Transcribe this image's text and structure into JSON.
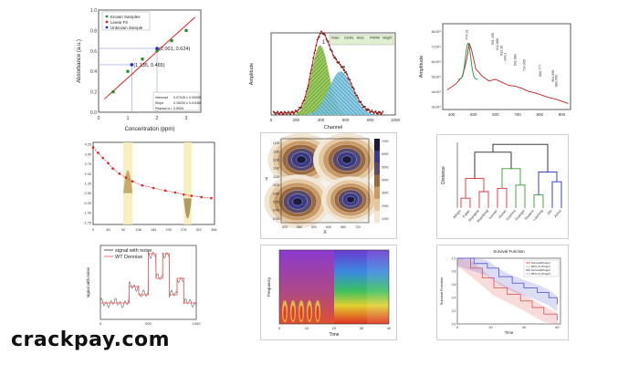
{
  "watermark": "crackpay.com",
  "chart_data": [
    {
      "type": "scatter",
      "title": "",
      "xlabel": "Concentration (ppm)",
      "ylabel": "Absorbance (a.u.)",
      "xlim": [
        0,
        3.5
      ],
      "ylim": [
        0,
        1.0
      ],
      "x_ticks": [
        "0",
        "1",
        "2",
        "3"
      ],
      "y_ticks": [
        "0.0",
        "0.2",
        "0.4",
        "0.6",
        "0.8",
        "1.0"
      ],
      "legend": [
        "Known Samples",
        "Linear Fit",
        "Unknown Sample"
      ],
      "legend_position": "top-left",
      "series": [
        {
          "name": "Known Samples",
          "x": [
            0.5,
            1.0,
            1.5,
            2.0,
            2.5,
            3.0
          ],
          "y": [
            0.2,
            0.4,
            0.52,
            0.6,
            0.7,
            0.8
          ]
        },
        {
          "name": "Linear Fit",
          "x": [
            0.2,
            3.3
          ],
          "y": [
            0.13,
            0.93
          ]
        },
        {
          "name": "Unknown Sample",
          "x": [
            1.135,
            2.001
          ],
          "y": [
            0.465,
            0.624
          ]
        }
      ],
      "annotations": [
        "(2.001,  0.624)",
        "(1.135,  0.465)"
      ],
      "stats_table": [
        [
          "Intercept",
          "0.07028 ± 0.00598"
        ],
        [
          "Slope",
          "0.16034 ± 0.01166"
        ],
        [
          "Pearson's r",
          "0.9925"
        ]
      ]
    },
    {
      "type": "area",
      "title": "",
      "xlabel": "Channel",
      "ylabel": "Amplitude",
      "x_ticks": [
        "0",
        "100",
        "200",
        "300",
        "400",
        "500",
        "600",
        "700",
        "800",
        "900",
        "1000"
      ],
      "peak_labels": [
        "1",
        "2"
      ],
      "series": [
        {
          "name": "Peak 1",
          "center": 395,
          "height": 0.72,
          "width": 70
        },
        {
          "name": "Peak 2",
          "center": 560,
          "height": 0.45,
          "width": 95
        }
      ],
      "fit_table_header": [
        "Index",
        "Centre",
        "Area",
        "FWHM",
        "Height"
      ]
    },
    {
      "type": "line",
      "title": "",
      "xlabel": "",
      "ylabel": "Amplitude",
      "x_ticks": [
        "400",
        "500",
        "600",
        "700",
        "800",
        "900"
      ],
      "y_ticks": [
        "3x10⁴",
        "4x10⁴",
        "5x10⁴",
        "6x10⁴",
        "7x10⁴",
        "8x10⁴"
      ],
      "x": [
        380,
        420,
        450,
        470,
        480,
        490,
        510,
        540,
        570,
        600,
        630,
        660,
        690,
        720,
        750,
        780,
        810,
        840,
        870,
        900,
        930
      ],
      "y": [
        41000,
        45000,
        50000,
        62000,
        72000,
        68000,
        55000,
        50000,
        47000,
        48000,
        46000,
        44000,
        43500,
        42000,
        40000,
        39000,
        37500,
        36000,
        35000,
        33500,
        32000
      ],
      "peak_labels": [
        "474.31",
        "591.455",
        "612.886",
        "632.36",
        "648.1",
        "692.683",
        "734.005",
        "806.777",
        "864.898",
        "880.069"
      ]
    },
    {
      "type": "line",
      "title": "",
      "x_ticks": [
        "0",
        "46",
        "92",
        "138",
        "184",
        "230",
        "276",
        "322",
        "368"
      ],
      "y_ticks": [
        "4.25",
        "3.50",
        "2.75",
        "2.00",
        "1.25",
        "0.50",
        "-0.25",
        "-1.00",
        "-1.75"
      ],
      "x": [
        0,
        15,
        30,
        46,
        60,
        80,
        100,
        120,
        150,
        184,
        220,
        250,
        276,
        300,
        330,
        360
      ],
      "y": [
        4.0,
        3.6,
        3.2,
        2.8,
        2.4,
        2.0,
        1.7,
        1.4,
        1.1,
        0.9,
        0.7,
        0.55,
        0.4,
        0.3,
        0.2,
        0.12
      ],
      "highlight_ranges": [
        [
          92,
          120
        ],
        [
          276,
          300
        ]
      ]
    },
    {
      "type": "heatmap",
      "title": "",
      "xlabel": "X",
      "ylabel": "Y",
      "x_ticks": [
        "520",
        "540",
        "560",
        "580",
        "600",
        "620",
        "640",
        "660",
        "680",
        "700",
        "720",
        "740"
      ],
      "y_ticks": [
        "1200",
        "1180",
        "1160",
        "1140",
        "1120",
        "1100",
        "1080",
        "1060",
        "1040",
        "1020"
      ],
      "colorbar_ticks": [
        "7000",
        "6000",
        "5000",
        "4000",
        "3000",
        "2000",
        "1000"
      ],
      "peaks": [
        {
          "x": 565,
          "y": 1160,
          "level": 7000
        },
        {
          "x": 690,
          "y": 1160,
          "level": 7000
        },
        {
          "x": 555,
          "y": 1060,
          "level": 7000
        },
        {
          "x": 700,
          "y": 1065,
          "level": 6000
        }
      ]
    },
    {
      "type": "line",
      "title": "",
      "ylabel": "Distance",
      "leaves": [
        "Jiangxi",
        "Fujian",
        "Shanghai",
        "Shandong",
        "Yunnan",
        "Hunan",
        "Guizhou",
        "Guangxi",
        "Shaanxi",
        "Liaoning",
        "Jilin",
        "Anhui"
      ],
      "merge_heights": [
        0.1,
        0.25,
        0.45,
        0.2,
        0.55,
        0.3,
        0.4,
        0.6,
        0.25,
        0.75,
        1.0
      ]
    },
    {
      "type": "line",
      "title": "",
      "xlabel": "",
      "ylabel": "signal with noise",
      "x_ticks": [
        "0",
        "500",
        "1000"
      ],
      "legend": [
        "signal with noise",
        "WT Denoise"
      ],
      "legend_position": "top-left",
      "series": [
        {
          "name": "signal with noise",
          "x": [
            0,
            150,
            300,
            400,
            500,
            580,
            650,
            720,
            800,
            870,
            1000
          ],
          "y": [
            2,
            2,
            4,
            3,
            8,
            5,
            8,
            3,
            5,
            2,
            2
          ]
        },
        {
          "name": "WT Denoise",
          "x": [
            0,
            150,
            300,
            400,
            500,
            580,
            650,
            720,
            800,
            870,
            1000
          ],
          "y": [
            2,
            2,
            4,
            3,
            8,
            5,
            8,
            3,
            5,
            2,
            2
          ]
        }
      ]
    },
    {
      "type": "heatmap",
      "title": "",
      "xlabel": "Time",
      "ylabel": "Frequency",
      "x_ticks": [
        "0",
        "10",
        "20",
        "30",
        "40"
      ]
    },
    {
      "type": "line",
      "title": "Survival Function",
      "xlabel": "Time",
      "ylabel": "Survival Function",
      "x_ticks": [
        "0",
        "20",
        "40",
        "60"
      ],
      "y_ticks": [
        "0.0",
        "0.2",
        "0.4",
        "0.6",
        "0.8",
        "1.0"
      ],
      "legend": [
        "Survival(Drug1)",
        "95% CI (Drug1)",
        "Survival(Drug2)",
        "95% CI (Drug2)"
      ],
      "legend_position": "top-right",
      "series": [
        {
          "name": "Survival(Drug1)",
          "x": [
            0,
            8,
            15,
            22,
            30,
            38,
            45,
            52,
            60
          ],
          "y": [
            1.0,
            0.85,
            0.7,
            0.55,
            0.45,
            0.35,
            0.25,
            0.15,
            0.05
          ]
        },
        {
          "name": "Survival(Drug2)",
          "x": [
            0,
            10,
            18,
            25,
            33,
            40,
            48,
            55,
            60
          ],
          "y": [
            1.0,
            0.92,
            0.85,
            0.72,
            0.62,
            0.55,
            0.48,
            0.4,
            0.3
          ]
        }
      ]
    }
  ]
}
